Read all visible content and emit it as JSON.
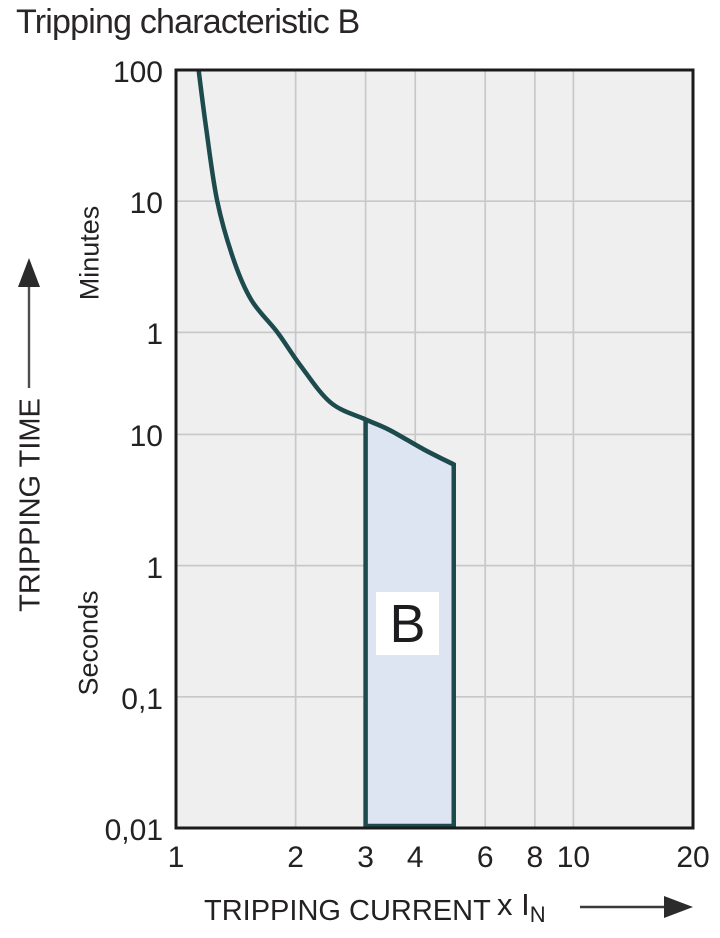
{
  "title": "Tripping characteristic B",
  "chart_data": {
    "type": "line",
    "title": "Tripping characteristic B",
    "x_axis": {
      "title": "TRIPPING CURRENT",
      "multiplier": "x I",
      "multiplier_sub": "N",
      "scale": "log",
      "range": [
        1,
        20
      ],
      "ticks": [
        {
          "label": "1",
          "value": 1
        },
        {
          "label": "2",
          "value": 2
        },
        {
          "label": "3",
          "value": 3
        },
        {
          "label": "4",
          "value": 4
        },
        {
          "label": "6",
          "value": 6
        },
        {
          "label": "8",
          "value": 8
        },
        {
          "label": "10",
          "value": 10
        },
        {
          "label": "20",
          "value": 20
        }
      ]
    },
    "y_axis": {
      "title": "TRIPPING TIME",
      "unit_upper": "Minutes",
      "unit_lower": "Seconds",
      "scale": "log",
      "range_seconds": [
        0.01,
        6000
      ],
      "ticks": [
        {
          "label": "100",
          "seconds": 6000,
          "unit": "minutes"
        },
        {
          "label": "10",
          "seconds": 600,
          "unit": "minutes"
        },
        {
          "label": "1",
          "seconds": 60,
          "unit": "minutes"
        },
        {
          "label": "10",
          "seconds": 10,
          "unit": "seconds"
        },
        {
          "label": "1",
          "seconds": 1,
          "unit": "seconds"
        },
        {
          "label": "0,1",
          "seconds": 0.1,
          "unit": "seconds"
        },
        {
          "label": "0,01",
          "seconds": 0.01,
          "unit": "seconds"
        }
      ]
    },
    "curve": {
      "name": "thermal trip curve",
      "points_multiple_vs_seconds": [
        [
          1.14,
          6000
        ],
        [
          1.19,
          2200
        ],
        [
          1.27,
          600
        ],
        [
          1.4,
          210
        ],
        [
          1.55,
          105
        ],
        [
          1.8,
          60
        ],
        [
          2.05,
          34
        ],
        [
          2.45,
          17.5
        ],
        [
          3.0,
          13
        ]
      ]
    },
    "band": {
      "label": "B",
      "x_range": [
        3,
        5
      ],
      "top_points_multiple_vs_seconds": [
        [
          3.0,
          13
        ],
        [
          3.45,
          10.8
        ],
        [
          4.2,
          7.7
        ],
        [
          5.0,
          5.9
        ]
      ],
      "bottom_seconds": 0.01
    },
    "grid": true,
    "colors": {
      "curve": "#1d4b4d",
      "band_fill": "#dde4f2",
      "plot_bg": "#efeff0",
      "grid": "#c8c8ca",
      "axis": "#1b1b1b",
      "text": "#242122"
    }
  }
}
